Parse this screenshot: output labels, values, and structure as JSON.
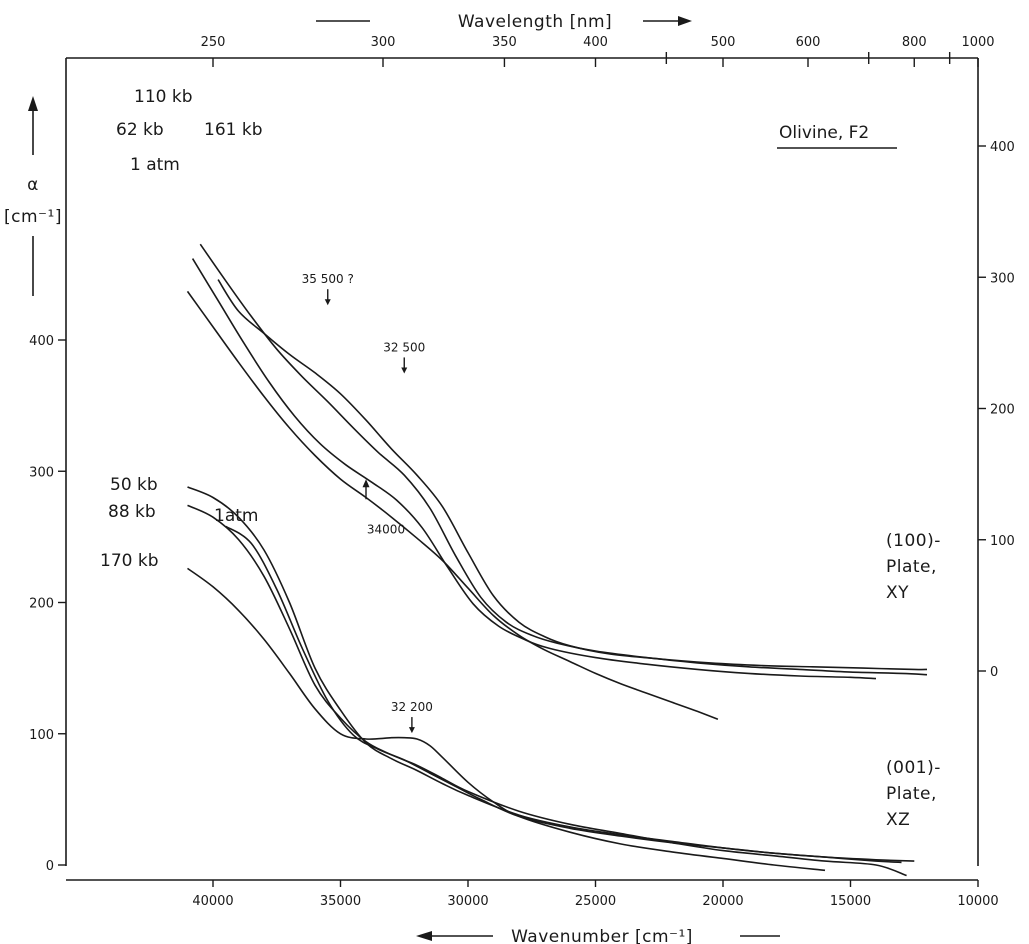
{
  "chart_data": {
    "type": "line",
    "title": "Olivine, F2",
    "top_axis": {
      "label": "Wavelength [nm]",
      "ticks": [
        250,
        300,
        350,
        400,
        500,
        600,
        800,
        1000
      ]
    },
    "bottom_axis": {
      "label": "Wavenumber [cm⁻¹]",
      "xlim": [
        45000,
        10000
      ],
      "ticks": [
        40000,
        35000,
        30000,
        25000,
        20000,
        15000,
        10000
      ]
    },
    "left_axis": {
      "label_symbol": "α",
      "label_unit": "[cm⁻¹]",
      "ylim": [
        0,
        520
      ],
      "ticks": [
        0,
        100,
        200,
        300,
        400
      ]
    },
    "right_axis": {
      "ticks": [
        0,
        100,
        200,
        300,
        400
      ]
    },
    "series": [
      {
        "name": "110 kb",
        "group": "(100)-Plate, XY",
        "x": [
          40500,
          39500,
          38500,
          37500,
          36500,
          35500,
          34500,
          33500,
          32500,
          31500,
          30500,
          29500,
          28500,
          27500,
          26500,
          25000,
          23000,
          21000,
          19000,
          17000,
          15000,
          13000,
          12000
        ],
        "y": [
          473,
          445,
          418,
          393,
          372,
          353,
          333,
          314,
          297,
          272,
          236,
          204,
          185,
          175,
          169,
          163,
          158,
          154,
          151,
          149,
          147,
          146,
          145
        ]
      },
      {
        "name": "161 kb",
        "group": "(100)-Plate, XY",
        "x": [
          39800,
          39000,
          38000,
          37000,
          36000,
          35000,
          34000,
          33000,
          32000,
          31000,
          30000,
          29000,
          28000,
          27000,
          26000,
          24500,
          22500,
          20500,
          18500,
          16500,
          14500,
          12500,
          12000
        ],
        "y": [
          446,
          422,
          405,
          389,
          375,
          359,
          339,
          317,
          297,
          273,
          238,
          205,
          185,
          174,
          167,
          161,
          157,
          154,
          152,
          151,
          150,
          149,
          149
        ]
      },
      {
        "name": "62 kb",
        "group": "(100)-Plate, XY",
        "x": [
          40800,
          39800,
          38800,
          37800,
          36800,
          35800,
          34800,
          33800,
          32800,
          31800,
          30800,
          29800,
          28800,
          27800,
          26800,
          25000,
          23000,
          21000,
          19000,
          17000,
          15000,
          14000
        ],
        "y": [
          462,
          430,
          398,
          368,
          342,
          321,
          305,
          292,
          278,
          257,
          227,
          199,
          182,
          172,
          165,
          158,
          153,
          149,
          146,
          144,
          143,
          142
        ]
      },
      {
        "name": "1 atm",
        "group": "(100)-Plate, XY",
        "x": [
          41000,
          40000,
          39000,
          38000,
          37000,
          36000,
          35000,
          34000,
          33000,
          32000,
          31000,
          30000,
          29000,
          28000,
          27000,
          26000,
          25000,
          24000,
          23000,
          22000,
          21000,
          20200
        ],
        "y": [
          437,
          410,
          383,
          357,
          333,
          312,
          294,
          280,
          265,
          249,
          232,
          211,
          190,
          175,
          164,
          155,
          146,
          138,
          131,
          124,
          117,
          111
        ]
      },
      {
        "name": "50 kb",
        "group": "(001)-Plate, XZ",
        "x": [
          41000,
          40000,
          39000,
          38000,
          37000,
          36000,
          35000,
          34000,
          33000,
          32000,
          31000,
          30000,
          28000,
          26000,
          24000,
          22000,
          20000,
          18000,
          16000,
          14000,
          12500
        ],
        "y": [
          288,
          280,
          265,
          240,
          200,
          150,
          118,
          93,
          81,
          72,
          62,
          53,
          38,
          29,
          23,
          18,
          13,
          9,
          6,
          4,
          3
        ]
      },
      {
        "name": "88 kb",
        "group": "(001)-Plate, XZ",
        "x": [
          41000,
          40000,
          39000,
          38000,
          37000,
          36000,
          35000,
          34000,
          33000,
          32000,
          31000,
          30000,
          28000,
          26000,
          24000,
          22000,
          20000,
          18000,
          16000,
          14000,
          12800
        ],
        "y": [
          274,
          265,
          248,
          220,
          180,
          137,
          112,
          94,
          84,
          76,
          66,
          56,
          41,
          31,
          24,
          17,
          11,
          7,
          3,
          0,
          -8
        ]
      },
      {
        "name": "1atm",
        "group": "(001)-Plate, XZ",
        "x": [
          39500,
          38500,
          37500,
          36500,
          35500,
          34500,
          33500,
          32500,
          31500,
          30500,
          29500,
          28000,
          26000,
          24000,
          22000,
          20000,
          18000,
          16000,
          14000,
          13000
        ],
        "y": [
          258,
          245,
          210,
          165,
          125,
          99,
          88,
          80,
          70,
          60,
          50,
          37,
          28,
          22,
          17,
          13,
          9,
          6,
          3,
          2
        ]
      },
      {
        "name": "170 kb",
        "group": "(001)-Plate, XZ",
        "x": [
          41000,
          40000,
          39000,
          38000,
          37000,
          36000,
          35000,
          34000,
          33000,
          32500,
          32000,
          31500,
          31000,
          30000,
          29000,
          28000,
          26000,
          24000,
          22000,
          20000,
          18000,
          16000
        ],
        "y": [
          226,
          212,
          194,
          172,
          146,
          119,
          100,
          96,
          97,
          97,
          96,
          91,
          82,
          63,
          48,
          37,
          25,
          16,
          10,
          5,
          0,
          -4
        ]
      }
    ],
    "annotations": [
      {
        "text": "35 500 ?",
        "x": 35500,
        "y": 425,
        "arrow": "down"
      },
      {
        "text": "32 500",
        "x": 32500,
        "y": 373,
        "arrow": "down"
      },
      {
        "text": "34000",
        "x": 34000,
        "y": 300,
        "arrow": "up"
      },
      {
        "text": "32 200",
        "x": 32200,
        "y": 99,
        "arrow": "down"
      }
    ],
    "plate_labels": [
      {
        "lines": [
          "(100)-",
          "Plate,",
          "XY"
        ]
      },
      {
        "lines": [
          "(001)-",
          "Plate,",
          "XZ"
        ]
      }
    ]
  }
}
